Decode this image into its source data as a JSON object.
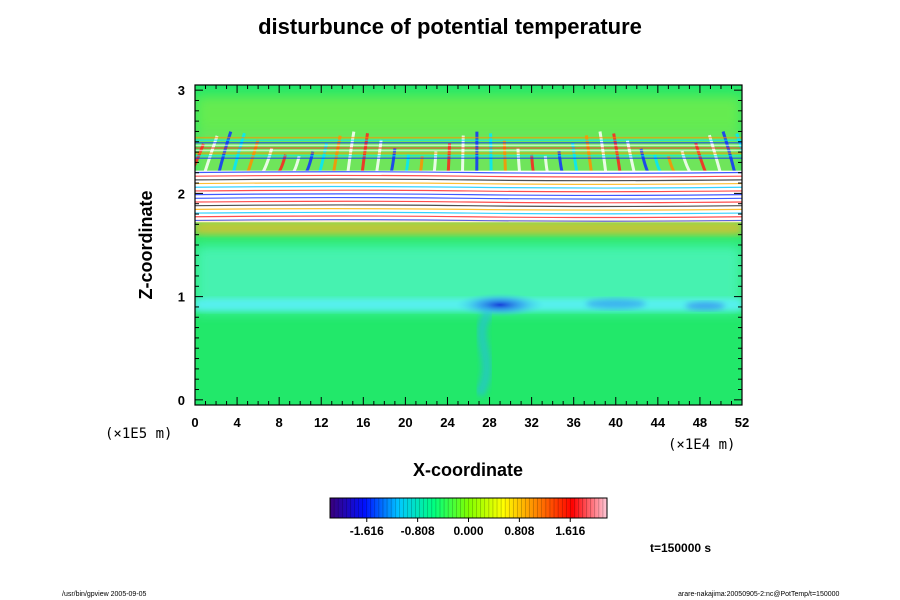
{
  "chart_data": {
    "type": "heatmap",
    "title": "disturbunce of potential temperature",
    "xlabel": "X-coordinate",
    "ylabel": "Z-coordinate",
    "x_unit": "(×1E4 m)",
    "y_unit": "(×1E5 m)",
    "xlim": [
      0,
      52
    ],
    "ylim": [
      -0.05,
      3.05
    ],
    "x_ticks": [
      "0",
      "4",
      "8",
      "12",
      "16",
      "20",
      "24",
      "28",
      "32",
      "36",
      "40",
      "44",
      "48",
      "52"
    ],
    "y_ticks": [
      "0",
      "1",
      "2",
      "3"
    ],
    "colorbar": {
      "ticks": [
        "-1.616",
        "-0.808",
        "0.000",
        "0.808",
        "1.616"
      ],
      "range": [
        -2.2,
        2.2
      ],
      "colormap": [
        "#3a007a",
        "#0010ff",
        "#00c8ff",
        "#00ff80",
        "#80ff00",
        "#ffff00",
        "#ff8000",
        "#ff0000",
        "#ffc8d8"
      ]
    },
    "fields": {
      "background_color": "#22e86a",
      "lower_layer_color": "#4cf4b8",
      "cold_anomaly_color": "#1250e8",
      "saturated_band_color": "#ffffff",
      "wave_layer_z_range": [
        1.6,
        2.6
      ],
      "saturated_band_z_range": [
        1.72,
        2.22
      ],
      "lower_layer_z_range": [
        0.85,
        1.5
      ],
      "cold_anomaly": {
        "x": 29,
        "z": 0.92,
        "value": -1.6
      }
    },
    "time_label": "t=150000 s",
    "grid": false,
    "legend": "bottom"
  },
  "footer": {
    "left": "/usr/bin/gpview 2005-09-05",
    "right": "arare-nakajima:20050905-2:nc@PotTemp/t=150000"
  }
}
